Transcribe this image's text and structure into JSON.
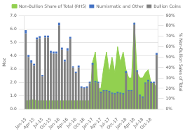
{
  "chart_data": {
    "type": "bar",
    "categories": [
      "Jan-15",
      null,
      null,
      "Apr-15",
      null,
      null,
      "Jul-15",
      null,
      null,
      "Oct-15",
      null,
      null,
      "Jan-16",
      null,
      null,
      "Apr-16",
      null,
      null,
      "Jul-16",
      null,
      null,
      "Oct-16",
      null,
      null,
      "Jan-17",
      null,
      null,
      "Apr-17",
      null,
      null,
      "Jul-17",
      null,
      null,
      "Oct-17",
      null,
      null,
      "Jan-18",
      null,
      null,
      "Apr-18",
      null,
      null,
      "Jul-18",
      null,
      null,
      "Oct-18",
      null,
      null
    ],
    "series": [
      {
        "name": "Bullion Coins",
        "color": "#808080",
        "values": [
          5.65,
          3.9,
          3.45,
          3.25,
          5.2,
          5.3,
          2.45,
          5.35,
          5.35,
          4.2,
          4.15,
          4.15,
          6.25,
          4.45,
          3.55,
          4.35,
          5.25,
          3.1,
          2.7,
          3.1,
          1.6,
          1.55,
          1.6,
          1.95,
          3.3,
          2.0,
          1.95,
          1.2,
          1.35,
          1.35,
          1.25,
          1.15,
          1.1,
          1.2,
          1.15,
          1.1,
          2.7,
          1.35,
          1.35,
          6.3,
          2.8,
          1.0,
          0.85,
          1.9,
          2.05,
          1.95,
          1.95,
          4.05
        ]
      },
      {
        "name": "Numismatic and Other",
        "color": "#4472c4",
        "values": [
          0.25,
          0.15,
          0.2,
          0.15,
          0.15,
          0.15,
          0.1,
          0.15,
          0.15,
          0.15,
          0.15,
          0.15,
          0.2,
          0.15,
          0.15,
          0.2,
          0.15,
          0.1,
          0.1,
          0.15,
          0.1,
          0.1,
          0.1,
          0.1,
          0.15,
          0.1,
          0.1,
          0.1,
          0.1,
          0.1,
          0.1,
          0.1,
          0.1,
          0.1,
          0.1,
          0.1,
          0.15,
          0.1,
          0.1,
          0.15,
          0.1,
          0.1,
          0.1,
          0.1,
          0.15,
          0.1,
          0.1,
          0.15
        ]
      },
      {
        "name": "Non-Bullion Share of Total (RHS)",
        "type": "area",
        "axis": "y2",
        "color": "#92d050",
        "values": [
          8,
          8,
          9,
          9,
          8,
          8,
          8,
          8,
          8,
          8,
          8,
          8,
          8,
          8,
          8,
          8,
          8,
          8,
          8,
          8,
          8,
          8,
          8,
          8,
          45,
          55,
          20,
          20,
          40,
          55,
          35,
          50,
          35,
          60,
          45,
          55,
          38,
          30,
          30,
          83,
          35,
          30,
          30,
          35,
          38,
          25,
          25,
          20
        ]
      }
    ],
    "ylabel": "Moz",
    "y2label": "% Non-Bullion Sales of Total",
    "ylim": [
      0,
      7.0
    ],
    "yticks": [
      {
        "value": 0,
        "label": "0.0"
      },
      {
        "value": 1,
        "label": "1.0"
      },
      {
        "value": 2,
        "label": "2.0"
      },
      {
        "value": 3,
        "label": "3.0"
      },
      {
        "value": 4,
        "label": "4.0"
      },
      {
        "value": 5,
        "label": "5.0"
      },
      {
        "value": 6,
        "label": "6.0"
      },
      {
        "value": 7,
        "label": "7.0"
      }
    ],
    "y2lim": [
      0,
      90
    ],
    "y2ticks": [
      {
        "value": 0,
        "label": "0%"
      },
      {
        "value": 10,
        "label": "10%"
      },
      {
        "value": 20,
        "label": "20%"
      },
      {
        "value": 30,
        "label": "30%"
      },
      {
        "value": 40,
        "label": "40%"
      },
      {
        "value": 50,
        "label": "50%"
      },
      {
        "value": 60,
        "label": "60%"
      },
      {
        "value": 70,
        "label": "70%"
      },
      {
        "value": 80,
        "label": "80%"
      },
      {
        "value": 90,
        "label": "90%"
      }
    ],
    "stacked": true,
    "grid": true,
    "legend": "upper right"
  }
}
